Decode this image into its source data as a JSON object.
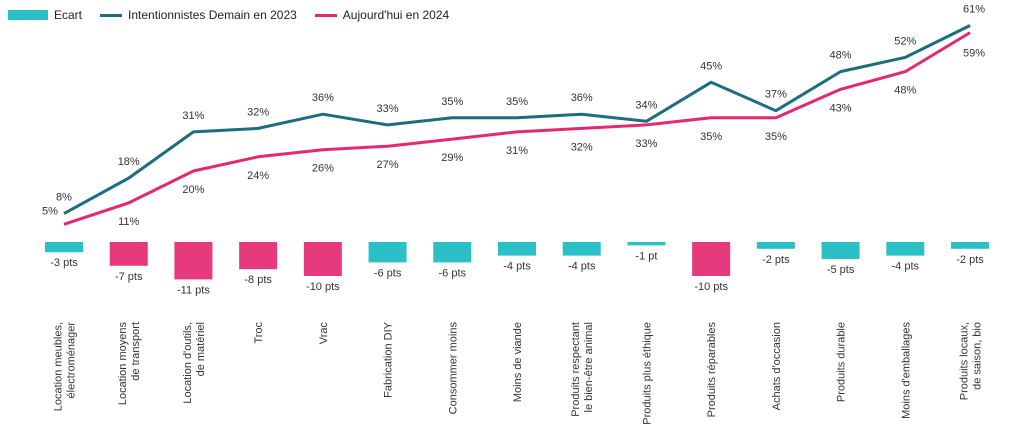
{
  "colors": {
    "ecart_pos": "#2BBFC6",
    "ecart_neg": "#E63A7D",
    "line_2023": "#1C6E7E",
    "line_2024": "#E3296F",
    "text": "#333333"
  },
  "legend": {
    "ecart": "Ecart",
    "line_2023": "Intentionnistes Demain en 2023",
    "line_2024": "Aujourd'hui en 2024"
  },
  "chart_data": {
    "type": "line",
    "categories": [
      "Location meubles,\nélectroménager",
      "Location moyens\nde transport",
      "Location d'outils,\nde matériel",
      "Troc",
      "Vrac",
      "Fabrication DIY",
      "Consommer moins",
      "Moins de viande",
      "Produits respectant\nle bien-être animal",
      "Produits plus éthique",
      "Produits réparables",
      "Achats d'occasion",
      "Produits durable",
      "Moins d'emballages",
      "Produits locaux,\nde saison, bio"
    ],
    "series": [
      {
        "name": "Intentionnistes Demain en 2023",
        "values": [
          8,
          18,
          31,
          32,
          36,
          33,
          35,
          35,
          36,
          34,
          45,
          37,
          48,
          52,
          61
        ],
        "labels": [
          "8%",
          "18%",
          "31%",
          "32%",
          "36%",
          "33%",
          "35%",
          "35%",
          "36%",
          "34%",
          "45%",
          "37%",
          "48%",
          "52%",
          "61%"
        ]
      },
      {
        "name": "Aujourd'hui en 2024",
        "values": [
          5,
          11,
          20,
          24,
          26,
          27,
          29,
          31,
          32,
          33,
          35,
          35,
          43,
          48,
          59
        ],
        "labels": [
          "5%",
          "11%",
          "20%",
          "24%",
          "26%",
          "27%",
          "29%",
          "31%",
          "32%",
          "33%",
          "35%",
          "35%",
          "43%",
          "48%",
          "59%"
        ]
      },
      {
        "name": "Ecart",
        "type": "bar",
        "values": [
          -3,
          -7,
          -11,
          -8,
          -10,
          -6,
          -6,
          -4,
          -4,
          -1,
          -10,
          -2,
          -5,
          -4,
          -2
        ],
        "labels": [
          "-3 pts",
          "-7 pts",
          "-11 pts",
          "-8 pts",
          "-10 pts",
          "-6 pts",
          "-6 pts",
          "-4 pts",
          "-4 pts",
          "-1 pt",
          "-10 pts",
          "-2 pts",
          "-5 pts",
          "-4 pts",
          "-2 pts"
        ],
        "highlight": [
          false,
          true,
          true,
          true,
          true,
          false,
          false,
          false,
          false,
          false,
          true,
          false,
          false,
          false,
          false
        ]
      }
    ],
    "grid": false
  }
}
